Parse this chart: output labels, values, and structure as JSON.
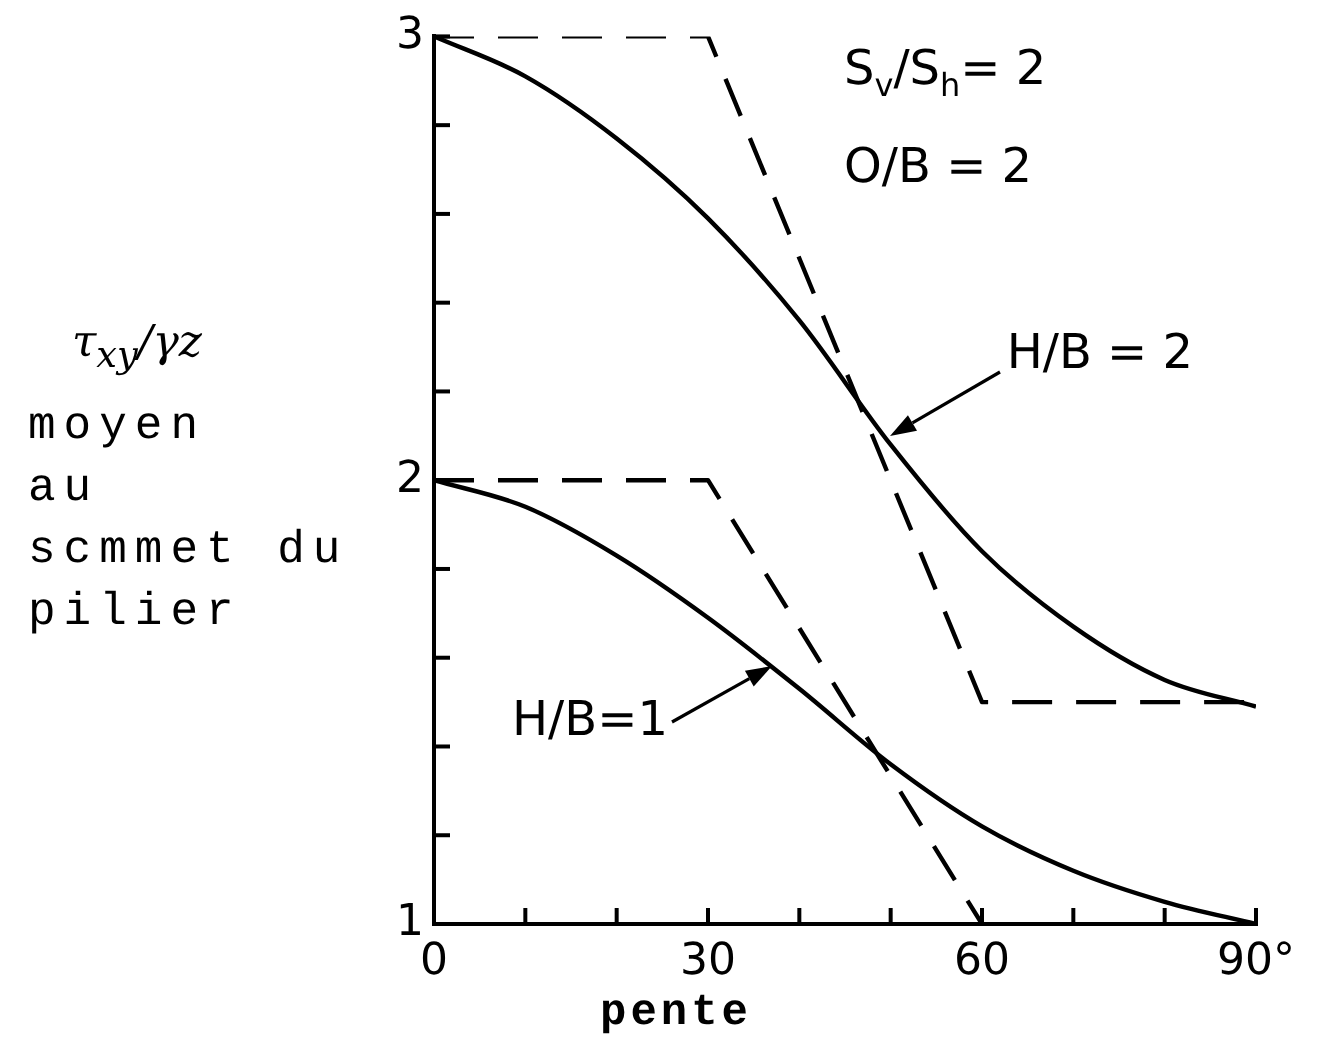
{
  "chart_data": {
    "type": "line",
    "xlabel": "pente",
    "ylabel": "τ$_{xy}$/γz\nmoyen\nau\nscmmet du\npilier",
    "annotations": [
      "S$_{v}$/S$_{h}$= 2",
      "O/B = 2",
      {
        "text": "H/B = 2",
        "x": 50,
        "y": 2.1
      },
      {
        "text": "H/B=1",
        "x": 37,
        "y": 1.58
      }
    ],
    "series": [
      {
        "color": "#000000",
        "line_style": "solid",
        "x": [
          0,
          10,
          20,
          30,
          40,
          50,
          60,
          70,
          80,
          90
        ],
        "values": [
          3.0,
          2.91,
          2.77,
          2.59,
          2.36,
          2.08,
          1.84,
          1.67,
          1.55,
          1.49
        ]
      },
      {
        "color": "#000000",
        "line_style": "dashed",
        "x": [
          0,
          30,
          60,
          90
        ],
        "values": [
          3,
          3,
          1.5,
          1.5
        ]
      },
      {
        "color": "#000000",
        "line_style": "solid",
        "x": [
          0,
          10,
          20,
          30,
          40,
          50,
          60,
          70,
          80,
          90
        ],
        "values": [
          2.0,
          1.94,
          1.83,
          1.69,
          1.53,
          1.36,
          1.22,
          1.12,
          1.05,
          1.0
        ]
      },
      {
        "color": "#000000",
        "line_style": "dashed",
        "x": [
          0,
          30,
          60
        ],
        "values": [
          2,
          2,
          1
        ]
      }
    ],
    "xlim": [
      0,
      90
    ],
    "xticks": [
      0,
      {
        "value": 10,
        "label": null
      },
      {
        "value": 20,
        "label": null
      },
      30,
      {
        "value": 40,
        "label": null
      },
      {
        "value": 50,
        "label": null
      },
      60,
      {
        "value": 70,
        "label": null
      },
      {
        "value": 80,
        "label": null
      },
      {
        "value": 90,
        "label": "90°"
      }
    ],
    "ylim": [
      1,
      3
    ],
    "yticks": [
      1,
      {
        "value": 1.2,
        "label": null
      },
      {
        "value": 1.4,
        "label": null
      },
      {
        "value": 1.6,
        "label": null
      },
      {
        "value": 1.8,
        "label": null
      },
      2,
      {
        "value": 2.2,
        "label": null
      },
      {
        "value": 2.4,
        "label": null
      },
      {
        "value": 2.6,
        "label": null
      },
      {
        "value": 2.8,
        "label": null
      },
      3
    ],
    "marker": "none"
  }
}
